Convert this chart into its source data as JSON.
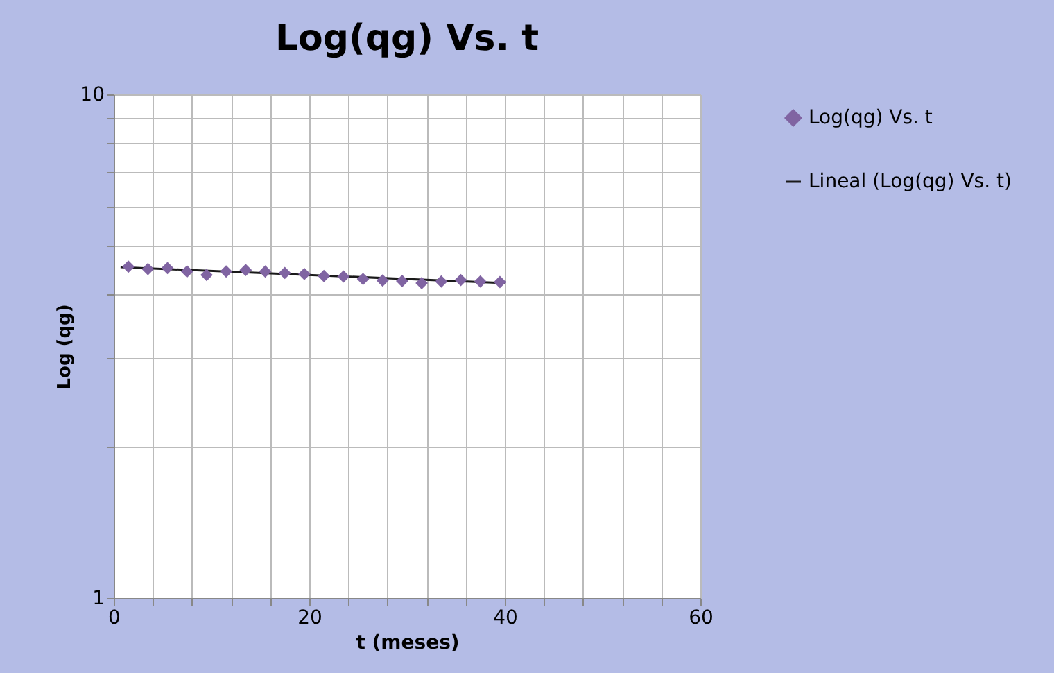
{
  "chart_data": {
    "type": "scatter",
    "title": "Log(qg) Vs. t",
    "xlabel": "t (meses)",
    "ylabel": "Log (qg)",
    "series": [
      {
        "name": "Log(qg) Vs. t",
        "type": "scatter",
        "color": "#8064a2",
        "marker": "diamond",
        "x": [
          1.5,
          3.5,
          5.5,
          7.5,
          9.5,
          11.5,
          13.5,
          15.5,
          17.5,
          19.5,
          21.5,
          23.5,
          25.5,
          27.5,
          29.5,
          31.5,
          33.5,
          35.5,
          37.5,
          39.5
        ],
        "values": [
          4.55,
          4.5,
          4.52,
          4.45,
          4.38,
          4.45,
          4.48,
          4.45,
          4.42,
          4.4,
          4.36,
          4.35,
          4.3,
          4.27,
          4.26,
          4.22,
          4.25,
          4.28,
          4.25,
          4.24
        ]
      },
      {
        "name": "Lineal (Log(qg) Vs. t)",
        "type": "line",
        "color": "#1a1a1a",
        "line_style": "solid",
        "x": [
          0.7,
          40
        ],
        "values": [
          4.54,
          4.22
        ]
      }
    ],
    "xlim": [
      0,
      60
    ],
    "xticks": [
      0,
      {
        "value": 4,
        "label": null
      },
      {
        "value": 8,
        "label": null
      },
      {
        "value": 12,
        "label": null
      },
      {
        "value": 16,
        "label": null
      },
      20,
      {
        "value": 24,
        "label": null
      },
      {
        "value": 28,
        "label": null
      },
      {
        "value": 32,
        "label": null
      },
      {
        "value": 36,
        "label": null
      },
      40,
      {
        "value": 44,
        "label": null
      },
      {
        "value": 48,
        "label": null
      },
      {
        "value": 52,
        "label": null
      },
      {
        "value": 56,
        "label": null
      },
      60
    ],
    "ylim": [
      1,
      10
    ],
    "yticks": [
      1,
      {
        "value": 2,
        "label": null
      },
      {
        "value": 3,
        "label": null
      },
      {
        "value": 4,
        "label": null
      },
      {
        "value": 5,
        "label": null
      },
      {
        "value": 6,
        "label": null
      },
      {
        "value": 7,
        "label": null
      },
      {
        "value": 8,
        "label": null
      },
      {
        "value": 9,
        "label": null
      },
      10
    ],
    "log": "y",
    "grid": true,
    "legend": "right"
  }
}
